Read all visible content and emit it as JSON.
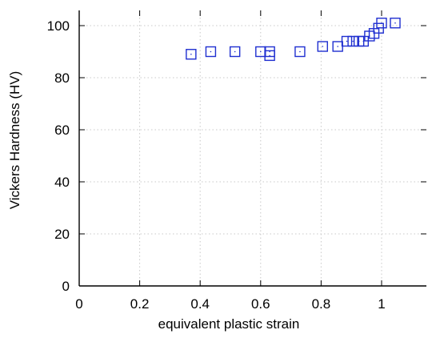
{
  "chart_data": {
    "type": "scatter",
    "title": "",
    "xlabel": "equivalent plastic strain",
    "ylabel": "Vickers Hardness (HV)",
    "xlim": [
      0,
      1.15
    ],
    "ylim": [
      0,
      105
    ],
    "x_ticks": [
      0,
      0.2,
      0.4,
      0.6,
      0.8,
      1
    ],
    "x_tick_labels": [
      "0",
      "0.2",
      "0.4",
      "0.6",
      "0.8",
      "1"
    ],
    "y_ticks": [
      0,
      20,
      40,
      60,
      80,
      100
    ],
    "y_tick_labels": [
      "0",
      "20",
      "40",
      "60",
      "80",
      "100"
    ],
    "grid": true,
    "marker": "open-square",
    "marker_color": "#1f2fd0",
    "grid_color": "#c8c8c8",
    "series": [
      {
        "x": [
          0.37,
          0.435,
          0.515,
          0.6,
          0.63,
          0.63,
          0.73,
          0.805,
          0.855,
          0.885,
          0.905,
          0.925,
          0.94,
          0.96,
          0.975,
          0.99,
          1.0,
          1.045
        ],
        "y": [
          89,
          90,
          90,
          90,
          90,
          88.5,
          90,
          92,
          92,
          94,
          94,
          94,
          94,
          96,
          97,
          99,
          101,
          101
        ]
      }
    ]
  }
}
